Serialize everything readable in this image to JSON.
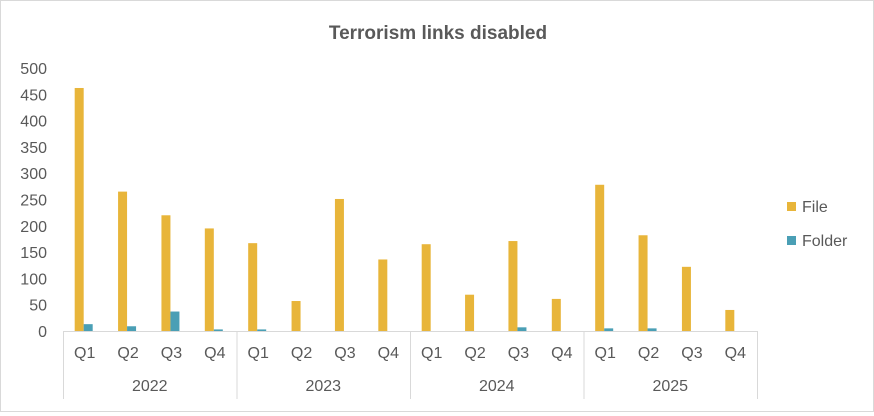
{
  "chart_data": {
    "type": "bar",
    "title": "Terrorism links disabled",
    "xlabel": "",
    "ylabel": "",
    "ylim": [
      0,
      500
    ],
    "yticks": [
      0,
      50,
      100,
      150,
      200,
      250,
      300,
      350,
      400,
      450,
      500
    ],
    "ytick_labels": [
      "0",
      "50",
      "100",
      "150",
      "200",
      "250",
      "300",
      "350",
      "400",
      "450",
      "500"
    ],
    "grid": false,
    "legend_position": "right",
    "groups": [
      {
        "label": "2022",
        "categories": [
          "Q1",
          "Q2",
          "Q3",
          "Q4"
        ]
      },
      {
        "label": "2023",
        "categories": [
          "Q1",
          "Q2",
          "Q3",
          "Q4"
        ]
      },
      {
        "label": "2024",
        "categories": [
          "Q1",
          "Q2",
          "Q3",
          "Q4"
        ]
      },
      {
        "label": "2025",
        "categories": [
          "Q1",
          "Q2",
          "Q3",
          "Q4"
        ]
      }
    ],
    "series": [
      {
        "name": "File",
        "color": "#e8b53a",
        "values": [
          462,
          265,
          220,
          195,
          167,
          57,
          251,
          136,
          165,
          69,
          171,
          61,
          278,
          182,
          122,
          40
        ]
      },
      {
        "name": "Folder",
        "color": "#4a9fb5",
        "values": [
          13,
          9,
          37,
          3,
          3,
          0,
          0,
          0,
          0,
          0,
          7,
          0,
          5,
          5,
          0,
          0
        ]
      }
    ]
  }
}
